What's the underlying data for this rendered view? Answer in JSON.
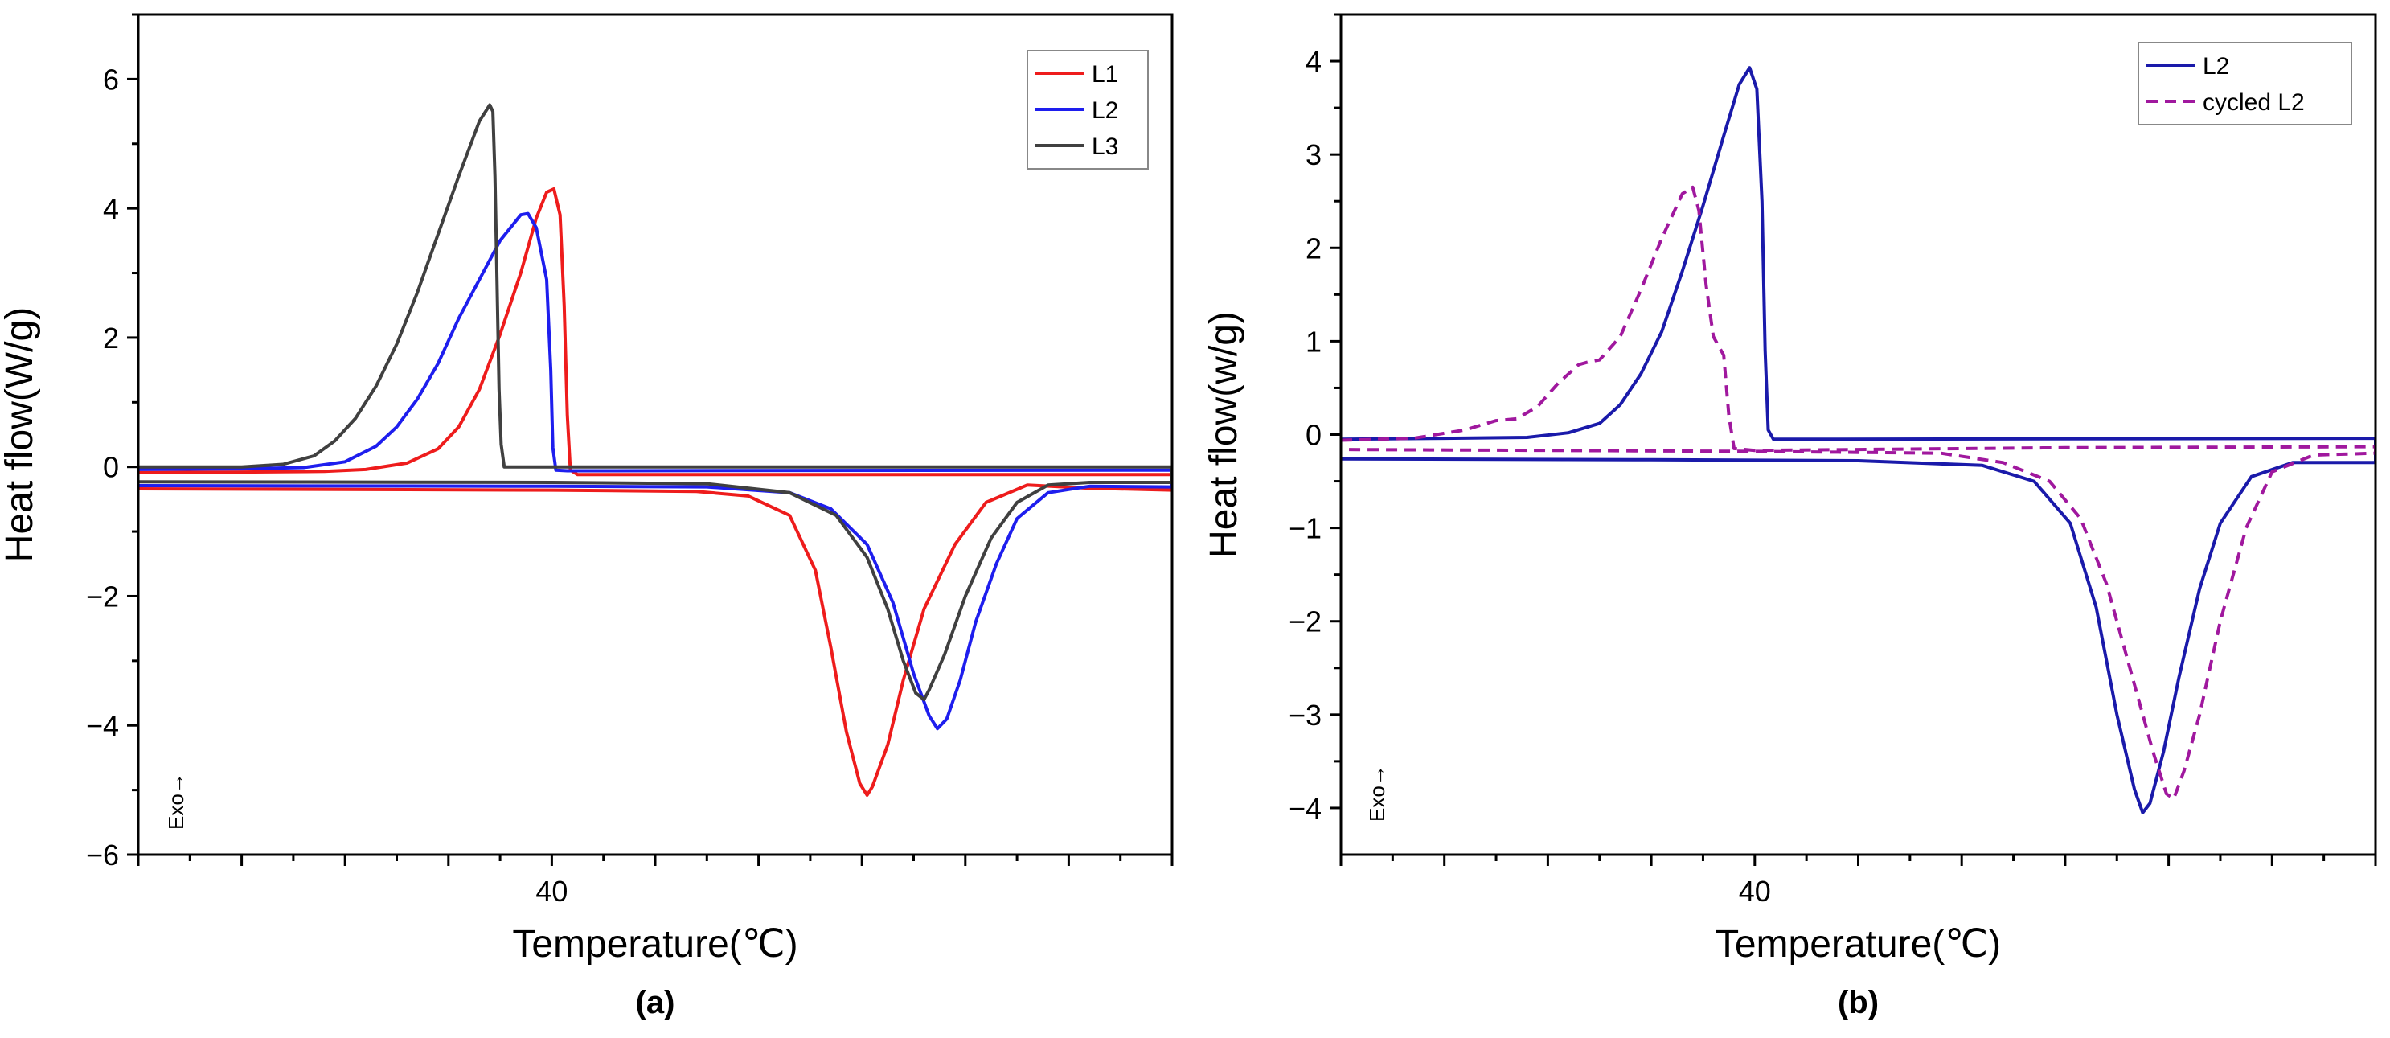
{
  "chart_data": [
    {
      "type": "line",
      "panel_label": "(a)",
      "xlabel": "Temperature(℃)",
      "ylabel": "Heat flow(W/g)",
      "x_tick_labels": [
        {
          "x": 40,
          "label": "40"
        }
      ],
      "xlim": [
        0,
        100
      ],
      "ylim": [
        -6,
        7
      ],
      "y_ticks": [
        -6,
        -4,
        -2,
        0,
        2,
        4,
        6
      ],
      "y_tick_labels": [
        "−6",
        "−4",
        "−2",
        "0",
        "2",
        "4",
        "6"
      ],
      "annotation": "Exo→",
      "legend_position": "top-right",
      "series": [
        {
          "name": "L1",
          "color": "#ee1c1c",
          "dash": "solid",
          "points": [
            [
              0,
              -0.09
            ],
            [
              10,
              -0.08
            ],
            [
              18,
              -0.07
            ],
            [
              22,
              -0.04
            ],
            [
              26,
              0.06
            ],
            [
              29,
              0.28
            ],
            [
              31,
              0.62
            ],
            [
              33,
              1.2
            ],
            [
              35,
              2.05
            ],
            [
              37,
              3.0
            ],
            [
              38.5,
              3.85
            ],
            [
              39.5,
              4.25
            ],
            [
              40.2,
              4.3
            ],
            [
              40.8,
              3.9
            ],
            [
              41.2,
              2.5
            ],
            [
              41.5,
              0.8
            ],
            [
              41.8,
              -0.05
            ],
            [
              42.5,
              -0.12
            ],
            [
              50,
              -0.12
            ],
            [
              100,
              -0.12
            ],
            [
              100,
              -0.36
            ],
            [
              92,
              -0.33
            ],
            [
              86,
              -0.28
            ],
            [
              82,
              -0.55
            ],
            [
              79,
              -1.2
            ],
            [
              76,
              -2.2
            ],
            [
              74,
              -3.3
            ],
            [
              72.5,
              -4.3
            ],
            [
              71,
              -4.95
            ],
            [
              70.5,
              -5.08
            ],
            [
              69.8,
              -4.9
            ],
            [
              68.5,
              -4.1
            ],
            [
              67,
              -2.8
            ],
            [
              65.5,
              -1.6
            ],
            [
              63,
              -0.75
            ],
            [
              59,
              -0.45
            ],
            [
              54,
              -0.38
            ],
            [
              40,
              -0.36
            ],
            [
              0,
              -0.34
            ]
          ]
        },
        {
          "name": "L2",
          "color": "#1e1eee",
          "dash": "solid",
          "points": [
            [
              0,
              -0.04
            ],
            [
              10,
              -0.03
            ],
            [
              16,
              -0.01
            ],
            [
              20,
              0.08
            ],
            [
              23,
              0.32
            ],
            [
              25,
              0.62
            ],
            [
              27,
              1.05
            ],
            [
              29,
              1.6
            ],
            [
              31,
              2.3
            ],
            [
              33,
              2.9
            ],
            [
              35,
              3.5
            ],
            [
              37,
              3.9
            ],
            [
              37.7,
              3.92
            ],
            [
              38.5,
              3.7
            ],
            [
              39.5,
              2.9
            ],
            [
              39.9,
              1.5
            ],
            [
              40.1,
              0.3
            ],
            [
              40.4,
              -0.05
            ],
            [
              41.5,
              -0.06
            ],
            [
              100,
              -0.05
            ],
            [
              100,
              -0.31
            ],
            [
              92,
              -0.3
            ],
            [
              88,
              -0.4
            ],
            [
              85,
              -0.8
            ],
            [
              83,
              -1.5
            ],
            [
              81,
              -2.4
            ],
            [
              79.5,
              -3.3
            ],
            [
              78.2,
              -3.9
            ],
            [
              77.3,
              -4.05
            ],
            [
              76.5,
              -3.85
            ],
            [
              75,
              -3.2
            ],
            [
              73,
              -2.1
            ],
            [
              70.5,
              -1.2
            ],
            [
              67,
              -0.65
            ],
            [
              63,
              -0.4
            ],
            [
              55,
              -0.31
            ],
            [
              40,
              -0.3
            ],
            [
              0,
              -0.29
            ]
          ]
        },
        {
          "name": "L3",
          "color": "#404040",
          "dash": "solid",
          "points": [
            [
              0,
              0.0
            ],
            [
              10,
              0.0
            ],
            [
              14,
              0.04
            ],
            [
              17,
              0.17
            ],
            [
              19,
              0.4
            ],
            [
              21,
              0.75
            ],
            [
              23,
              1.25
            ],
            [
              25,
              1.9
            ],
            [
              27,
              2.7
            ],
            [
              29,
              3.6
            ],
            [
              31,
              4.5
            ],
            [
              33,
              5.35
            ],
            [
              34,
              5.6
            ],
            [
              34.3,
              5.5
            ],
            [
              34.5,
              4.5
            ],
            [
              34.7,
              2.9
            ],
            [
              34.9,
              1.2
            ],
            [
              35.1,
              0.35
            ],
            [
              35.4,
              0.0
            ],
            [
              37,
              0.0
            ],
            [
              48,
              0.0
            ],
            [
              100,
              0.0
            ],
            [
              100,
              -0.24
            ],
            [
              92,
              -0.24
            ],
            [
              88,
              -0.28
            ],
            [
              85,
              -0.55
            ],
            [
              82.5,
              -1.1
            ],
            [
              80,
              -2.0
            ],
            [
              78,
              -2.9
            ],
            [
              76.5,
              -3.45
            ],
            [
              76,
              -3.6
            ],
            [
              75.2,
              -3.5
            ],
            [
              74,
              -3.0
            ],
            [
              72.5,
              -2.2
            ],
            [
              70.5,
              -1.4
            ],
            [
              67.5,
              -0.75
            ],
            [
              63,
              -0.4
            ],
            [
              55,
              -0.26
            ],
            [
              40,
              -0.24
            ],
            [
              0,
              -0.23
            ]
          ]
        }
      ]
    },
    {
      "type": "line",
      "panel_label": "(b)",
      "xlabel": "Temperature(℃)",
      "ylabel": "Heat flow(w/g)",
      "x_tick_labels": [
        {
          "x": 40,
          "label": "40"
        }
      ],
      "xlim": [
        0,
        100
      ],
      "ylim": [
        -4.5,
        4.5
      ],
      "y_ticks": [
        -4,
        -3,
        -2,
        -1,
        0,
        1,
        2,
        3,
        4
      ],
      "y_tick_labels": [
        "−4",
        "−3",
        "−2",
        "−1",
        "0",
        "1",
        "2",
        "3",
        "4"
      ],
      "annotation": "Exo→",
      "legend_position": "top-right",
      "series": [
        {
          "name": "L2",
          "color": "#1a1aaa",
          "dash": "solid",
          "points": [
            [
              0,
              -0.05
            ],
            [
              10,
              -0.04
            ],
            [
              18,
              -0.03
            ],
            [
              22,
              0.02
            ],
            [
              25,
              0.12
            ],
            [
              27,
              0.32
            ],
            [
              29,
              0.65
            ],
            [
              31,
              1.1
            ],
            [
              33,
              1.75
            ],
            [
              35,
              2.45
            ],
            [
              37,
              3.2
            ],
            [
              38.5,
              3.75
            ],
            [
              39.5,
              3.93
            ],
            [
              40.2,
              3.7
            ],
            [
              40.7,
              2.5
            ],
            [
              41,
              0.9
            ],
            [
              41.3,
              0.05
            ],
            [
              41.8,
              -0.05
            ],
            [
              45,
              -0.05
            ],
            [
              100,
              -0.04
            ],
            [
              100,
              -0.3
            ],
            [
              92,
              -0.3
            ],
            [
              88,
              -0.45
            ],
            [
              85,
              -0.95
            ],
            [
              83,
              -1.65
            ],
            [
              81,
              -2.6
            ],
            [
              79.5,
              -3.4
            ],
            [
              78.2,
              -3.95
            ],
            [
              77.5,
              -4.05
            ],
            [
              76.7,
              -3.8
            ],
            [
              75,
              -3.0
            ],
            [
              73,
              -1.85
            ],
            [
              70.5,
              -0.95
            ],
            [
              67,
              -0.5
            ],
            [
              62,
              -0.33
            ],
            [
              50,
              -0.28
            ],
            [
              30,
              -0.27
            ],
            [
              0,
              -0.26
            ]
          ]
        },
        {
          "name": "cycled L2",
          "color": "#a0189e",
          "dash": "dashed",
          "points": [
            [
              0,
              -0.06
            ],
            [
              7,
              -0.04
            ],
            [
              12,
              0.05
            ],
            [
              15,
              0.15
            ],
            [
              17,
              0.17
            ],
            [
              19,
              0.3
            ],
            [
              21,
              0.55
            ],
            [
              23,
              0.75
            ],
            [
              24,
              0.78
            ],
            [
              25,
              0.8
            ],
            [
              27,
              1.05
            ],
            [
              29,
              1.55
            ],
            [
              31,
              2.1
            ],
            [
              33,
              2.58
            ],
            [
              34,
              2.65
            ],
            [
              34.6,
              2.4
            ],
            [
              35.3,
              1.6
            ],
            [
              36,
              1.05
            ],
            [
              37,
              0.85
            ],
            [
              37.5,
              0.2
            ],
            [
              38,
              -0.15
            ],
            [
              40,
              -0.17
            ],
            [
              50,
              -0.16
            ],
            [
              70,
              -0.14
            ],
            [
              100,
              -0.13
            ],
            [
              100,
              -0.2
            ],
            [
              94,
              -0.22
            ],
            [
              90,
              -0.4
            ],
            [
              87.5,
              -1.0
            ],
            [
              85,
              -2.0
            ],
            [
              83,
              -3.0
            ],
            [
              81.5,
              -3.6
            ],
            [
              80.5,
              -3.9
            ],
            [
              79.8,
              -3.85
            ],
            [
              78.5,
              -3.4
            ],
            [
              76.5,
              -2.6
            ],
            [
              74,
              -1.6
            ],
            [
              71.5,
              -0.9
            ],
            [
              68.5,
              -0.5
            ],
            [
              64,
              -0.3
            ],
            [
              58,
              -0.2
            ],
            [
              40,
              -0.18
            ],
            [
              20,
              -0.17
            ],
            [
              0,
              -0.16
            ]
          ]
        }
      ]
    }
  ]
}
